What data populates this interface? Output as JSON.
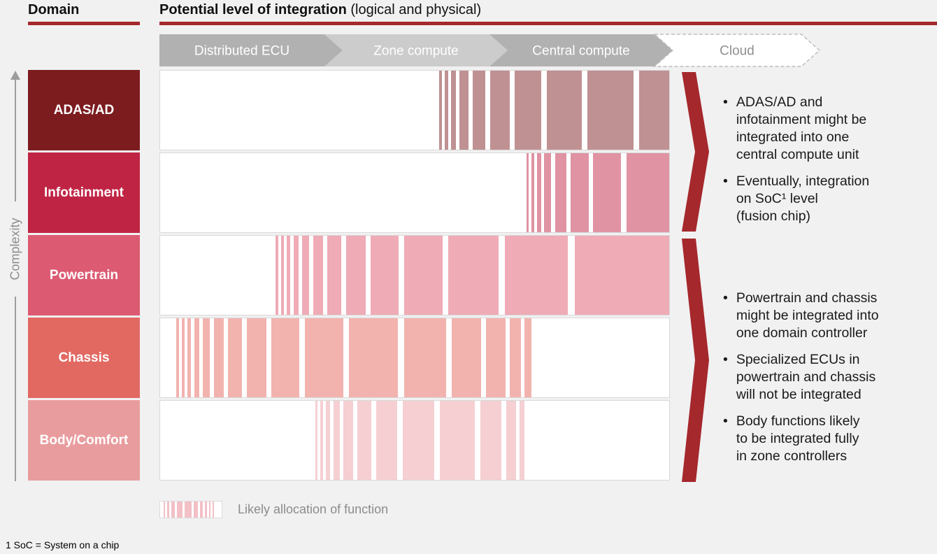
{
  "header": {
    "domain_label": "Domain",
    "integration_title_bold": "Potential level of integration",
    "integration_title_regular": " (logical and physical)"
  },
  "colors": {
    "accent_red": "#a5282c",
    "background": "#f1f1f2",
    "axis_gray": "#9d9d9d"
  },
  "stages": [
    {
      "label": "Distributed ECU",
      "fill": "#b1b1b1",
      "text_color": "#ffffff",
      "border": "none"
    },
    {
      "label": "Zone compute",
      "fill": "#cccccc",
      "text_color": "#ffffff",
      "border": "none"
    },
    {
      "label": "Central compute",
      "fill": "#b1b1b1",
      "text_color": "#ffffff",
      "border": "none"
    },
    {
      "label": "Cloud",
      "fill": "#ffffff",
      "text_color": "#8f8f8f",
      "border": "dashed"
    }
  ],
  "complexity_axis": {
    "label": "Complexity"
  },
  "rows": [
    {
      "domain": "ADAS/AD",
      "color": "#7c1c1f",
      "stripe_color": "#bf9193",
      "allocation_span_pct": [
        54.7,
        100
      ],
      "stripes": [
        [
          399,
          4
        ],
        [
          407,
          5
        ],
        [
          416,
          7
        ],
        [
          428,
          13
        ],
        [
          447,
          18
        ],
        [
          472,
          28
        ],
        [
          507,
          38
        ],
        [
          553,
          50
        ],
        [
          611,
          66
        ],
        [
          685,
          45
        ]
      ]
    },
    {
      "domain": "Infotainment",
      "color": "#c02444",
      "stripe_color": "#df93a3",
      "allocation_span_pct": [
        71.8,
        100
      ],
      "stripes": [
        [
          524,
          3
        ],
        [
          531,
          4
        ],
        [
          539,
          6
        ],
        [
          549,
          10
        ],
        [
          565,
          16
        ],
        [
          587,
          26
        ],
        [
          619,
          40
        ],
        [
          667,
          63
        ]
      ]
    },
    {
      "domain": "Powertrain",
      "color": "#dc5a72",
      "stripe_color": "#efabb6",
      "allocation_span_pct": [
        22.6,
        100
      ],
      "stripes": [
        [
          165,
          4
        ],
        [
          173,
          4
        ],
        [
          181,
          5
        ],
        [
          191,
          7
        ],
        [
          203,
          10
        ],
        [
          219,
          14
        ],
        [
          239,
          20
        ],
        [
          266,
          28
        ],
        [
          301,
          40
        ],
        [
          349,
          55
        ],
        [
          412,
          72
        ],
        [
          493,
          90
        ],
        [
          593,
          137
        ]
      ]
    },
    {
      "domain": "Chassis",
      "color": "#e16962",
      "stripe_color": "#f2b3af",
      "allocation_span_pct": [
        3.2,
        72.7
      ],
      "stripes": [
        [
          23,
          4
        ],
        [
          31,
          4
        ],
        [
          39,
          5
        ],
        [
          49,
          7
        ],
        [
          61,
          10
        ],
        [
          77,
          14
        ],
        [
          97,
          20
        ],
        [
          124,
          28
        ],
        [
          159,
          40
        ],
        [
          207,
          55
        ],
        [
          270,
          70
        ],
        [
          349,
          60
        ],
        [
          417,
          42
        ],
        [
          466,
          28
        ],
        [
          500,
          16
        ],
        [
          521,
          10
        ]
      ]
    },
    {
      "domain": "Body/Comfort",
      "color": "#e99c9e",
      "stripe_color": "#f5cfd2",
      "allocation_span_pct": [
        30.4,
        71.4
      ],
      "stripes": [
        [
          222,
          3
        ],
        [
          229,
          4
        ],
        [
          237,
          6
        ],
        [
          248,
          9
        ],
        [
          262,
          14
        ],
        [
          282,
          20
        ],
        [
          309,
          30
        ],
        [
          347,
          45
        ],
        [
          400,
          50
        ],
        [
          458,
          30
        ],
        [
          495,
          14
        ],
        [
          514,
          7
        ]
      ]
    }
  ],
  "insights": [
    {
      "bullets": [
        "ADAS/AD and\ninfotainment might be\nintegrated into one\ncentral compute unit",
        "Eventually, integration\non SoC¹ level\n(fusion chip)"
      ]
    },
    {
      "bullets": [
        "Powertrain and chassis\nmight be integrated into\none domain controller",
        "Specialized ECUs in\npowertrain and chassis\nwill not be integrated",
        "Body functions likely\nto be integrated fully\nin zone controllers"
      ]
    }
  ],
  "legend": {
    "label": "Likely allocation of function",
    "stripe_color": "#f2c0c6",
    "stripes": [
      [
        5,
        2
      ],
      [
        10,
        3
      ],
      [
        16,
        5
      ],
      [
        24,
        8
      ],
      [
        35,
        10
      ],
      [
        48,
        6
      ],
      [
        57,
        4
      ],
      [
        64,
        3
      ],
      [
        70,
        2
      ],
      [
        75,
        2
      ]
    ]
  },
  "footnote": "1 SoC = System on a chip"
}
